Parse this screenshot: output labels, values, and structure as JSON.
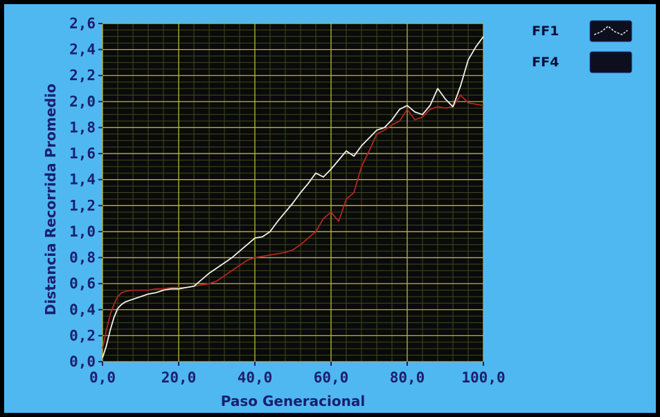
{
  "chart_data": {
    "type": "line",
    "title": "",
    "xlabel": "Paso Generacional",
    "ylabel": "Distancia Recorrida Promedio",
    "xlim": [
      0,
      100
    ],
    "ylim": [
      0,
      2.6
    ],
    "x_ticks": [
      "0,0",
      "20,0",
      "40,0",
      "60,0",
      "80,0",
      "100,0"
    ],
    "y_ticks": [
      "0,0",
      "0,2",
      "0,4",
      "0,6",
      "0,8",
      "1,0",
      "1,2",
      "1,4",
      "1,6",
      "1,8",
      "2,0",
      "2,2",
      "2,4",
      "2,6"
    ],
    "grid": true,
    "legend_position": "top-right",
    "series": [
      {
        "name": "FF1",
        "color": "#f2f2ea",
        "x": [
          0,
          1,
          2,
          3,
          4,
          5,
          6,
          8,
          10,
          12,
          14,
          16,
          18,
          20,
          22,
          24,
          26,
          28,
          30,
          32,
          34,
          36,
          38,
          40,
          42,
          44,
          46,
          48,
          50,
          52,
          54,
          56,
          58,
          60,
          62,
          64,
          66,
          68,
          70,
          72,
          74,
          76,
          78,
          80,
          82,
          84,
          86,
          88,
          90,
          92,
          94,
          96,
          98,
          100
        ],
        "y": [
          0.03,
          0.12,
          0.24,
          0.34,
          0.41,
          0.44,
          0.46,
          0.48,
          0.5,
          0.52,
          0.53,
          0.55,
          0.56,
          0.56,
          0.57,
          0.58,
          0.63,
          0.68,
          0.72,
          0.76,
          0.8,
          0.85,
          0.9,
          0.95,
          0.96,
          1.0,
          1.08,
          1.15,
          1.22,
          1.3,
          1.37,
          1.45,
          1.42,
          1.48,
          1.55,
          1.62,
          1.58,
          1.66,
          1.72,
          1.78,
          1.8,
          1.86,
          1.94,
          1.97,
          1.92,
          1.9,
          1.97,
          2.1,
          2.02,
          1.96,
          2.12,
          2.32,
          2.42,
          2.5
        ]
      },
      {
        "name": "FF4",
        "color": "#b3261e",
        "x": [
          0,
          1,
          2,
          3,
          4,
          5,
          6,
          8,
          10,
          12,
          14,
          16,
          18,
          20,
          22,
          24,
          26,
          28,
          30,
          32,
          34,
          36,
          38,
          40,
          42,
          44,
          46,
          48,
          50,
          52,
          54,
          56,
          58,
          60,
          62,
          64,
          66,
          68,
          70,
          72,
          74,
          76,
          78,
          80,
          82,
          84,
          86,
          88,
          90,
          92,
          94,
          96,
          98,
          100
        ],
        "y": [
          0.1,
          0.24,
          0.36,
          0.44,
          0.5,
          0.53,
          0.54,
          0.55,
          0.55,
          0.55,
          0.56,
          0.56,
          0.57,
          0.57,
          0.57,
          0.58,
          0.59,
          0.6,
          0.62,
          0.66,
          0.7,
          0.74,
          0.78,
          0.8,
          0.81,
          0.82,
          0.83,
          0.84,
          0.86,
          0.9,
          0.95,
          1.0,
          1.1,
          1.15,
          1.08,
          1.25,
          1.3,
          1.5,
          1.62,
          1.75,
          1.78,
          1.82,
          1.85,
          1.94,
          1.86,
          1.88,
          1.94,
          1.96,
          1.95,
          1.96,
          2.05,
          1.99,
          1.98,
          1.97
        ]
      }
    ]
  }
}
